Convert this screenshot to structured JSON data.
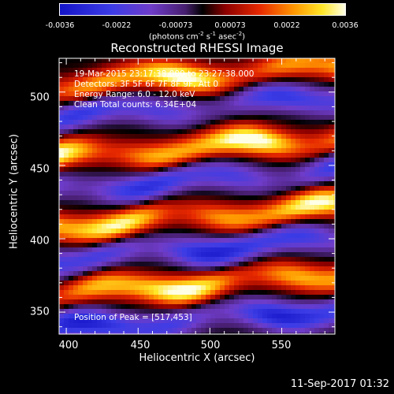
{
  "colorbar": {
    "ticks": [
      "-0.0036",
      "-0.0022",
      "-0.00073",
      "0.00073",
      "0.0022",
      "0.0036"
    ],
    "unit_prefix": "(photons cm",
    "unit_exp1": "-2",
    "unit_mid1": " s",
    "unit_exp2": "-1",
    "unit_mid2": " asec",
    "unit_exp3": "-2",
    "unit_suffix": ")"
  },
  "title": "Reconstructed RHESSI Image",
  "info": {
    "line1": "19-Mar-2015 23:17:38.000 to 23:27:38.000",
    "line2": "Detectors: 3F 5F 6F 7F 8F 9F, Att 0",
    "line3": "Energy Range: 6.0 - 12.0 keV",
    "line4": "Clean     Total counts: 6.34E+04"
  },
  "peak_label": "Position of Peak = [517,453]",
  "timestamp": "11-Sep-2017 01:32",
  "chart_data": {
    "type": "heatmap",
    "title": "Reconstructed RHESSI Image",
    "xlabel": "Heliocentric X (arcsec)",
    "ylabel": "Heliocentric Y (arcsec)",
    "xlim": [
      395,
      587
    ],
    "ylim": [
      335,
      523
    ],
    "xticks": [
      400,
      450,
      500,
      550
    ],
    "yticks": [
      350,
      400,
      450,
      500
    ],
    "zlim": [
      -0.0036,
      0.0036
    ],
    "colormap": "rainbow-blue-purple-red-yellow-white",
    "peak": [
      517,
      453
    ],
    "bands": [
      {
        "y": 511,
        "amp": 0.0034
      },
      {
        "y": 490,
        "amp": -0.0024
      },
      {
        "y": 462,
        "amp": 0.0036
      },
      {
        "y": 440,
        "amp": -0.0026
      },
      {
        "y": 415,
        "amp": 0.0033
      },
      {
        "y": 393,
        "amp": -0.003
      },
      {
        "y": 369,
        "amp": 0.0035
      },
      {
        "y": 345,
        "amp": -0.003
      }
    ]
  }
}
